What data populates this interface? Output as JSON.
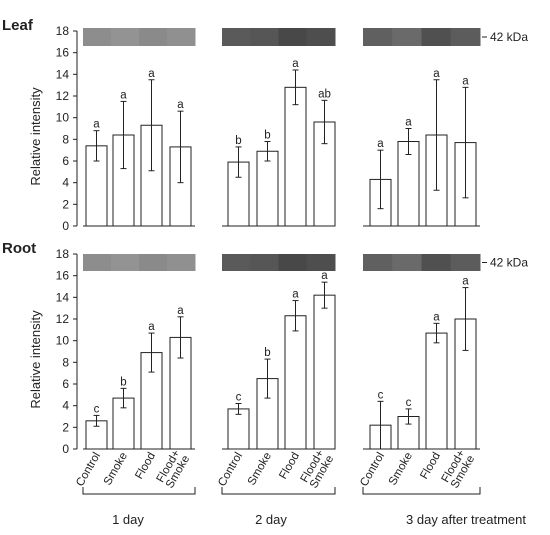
{
  "colors": {
    "bar_fill": "#ffffff",
    "bar_stroke": "#222222",
    "axis": "#222222",
    "blot_light": "#8a8a8a",
    "blot_dark": "#4a4a4a"
  },
  "chart_data": [
    {
      "type": "bar",
      "title": "Leaf",
      "ylabel": "Relative intensity",
      "ylim": [
        0,
        18
      ],
      "yticks": [
        "0",
        "2",
        "4",
        "6",
        "8",
        "10",
        "12",
        "14",
        "16",
        "18"
      ],
      "band_label": "42 kDa",
      "groups": [
        "1 day",
        "2 day",
        "3 day after treatment"
      ],
      "categories": [
        "Control",
        "Smoke",
        "Flood",
        "Flood+ Smoke"
      ],
      "series": [
        {
          "group": "1 day",
          "values": [
            7.4,
            8.4,
            9.3,
            7.3
          ],
          "errors": [
            1.4,
            3.1,
            4.2,
            3.3
          ],
          "letters": [
            "a",
            "a",
            "a",
            "a"
          ]
        },
        {
          "group": "2 day",
          "values": [
            5.9,
            6.9,
            12.8,
            9.6
          ],
          "errors": [
            1.4,
            0.9,
            1.6,
            2.0
          ],
          "letters": [
            "b",
            "b",
            "a",
            "ab"
          ]
        },
        {
          "group": "3 day after treatment",
          "values": [
            4.3,
            7.8,
            8.4,
            7.7
          ],
          "errors": [
            2.7,
            1.2,
            5.1,
            5.1
          ],
          "letters": [
            "a",
            "a",
            "a",
            "a"
          ]
        }
      ]
    },
    {
      "type": "bar",
      "title": "Root",
      "ylabel": "Relative intensity",
      "ylim": [
        0,
        18
      ],
      "yticks": [
        "0",
        "2",
        "4",
        "6",
        "8",
        "10",
        "12",
        "14",
        "16",
        "18"
      ],
      "band_label": "42 kDa",
      "groups": [
        "1 day",
        "2 day",
        "3 day after treatment"
      ],
      "categories": [
        "Control",
        "Smoke",
        "Flood",
        "Flood+ Smoke"
      ],
      "series": [
        {
          "group": "1 day",
          "values": [
            2.6,
            4.7,
            8.9,
            10.3
          ],
          "errors": [
            0.5,
            0.9,
            1.8,
            1.9
          ],
          "letters": [
            "c",
            "b",
            "a",
            "a"
          ]
        },
        {
          "group": "2 day",
          "values": [
            3.7,
            6.5,
            12.3,
            14.2
          ],
          "errors": [
            0.5,
            1.8,
            1.4,
            1.2
          ],
          "letters": [
            "c",
            "b",
            "a",
            "a"
          ]
        },
        {
          "group": "3 day after treatment",
          "values": [
            2.2,
            3.0,
            10.7,
            12.0
          ],
          "errors": [
            2.2,
            0.7,
            0.9,
            2.9
          ],
          "letters": [
            "c",
            "c",
            "a",
            "a"
          ]
        }
      ]
    }
  ]
}
